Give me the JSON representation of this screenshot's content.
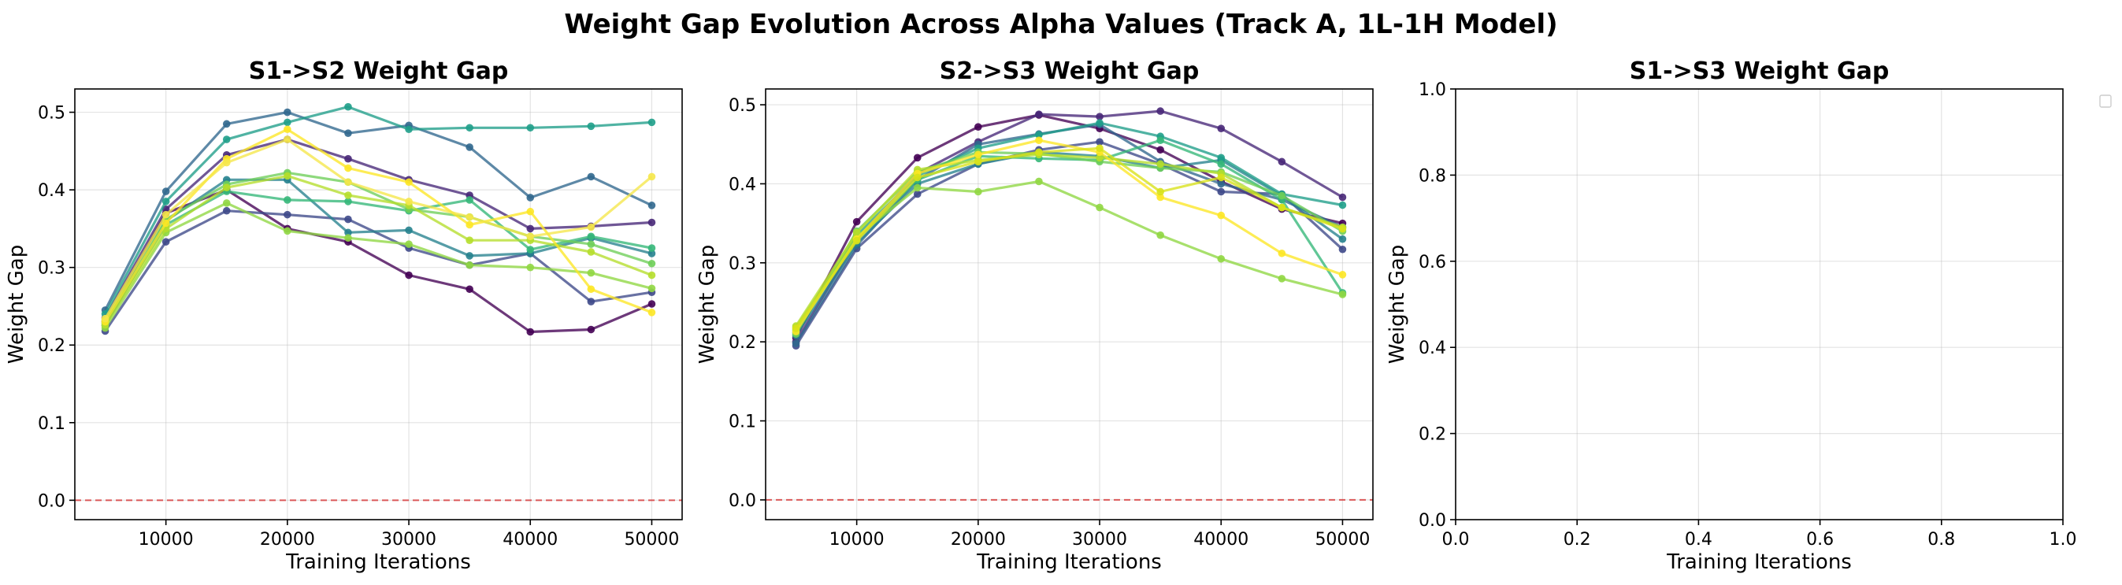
{
  "figure": {
    "title": "Weight Gap Evolution Across Alpha Values (Track A, 1L-1H Model)"
  },
  "chart_data": [
    {
      "type": "line",
      "title": "S1->S2 Weight Gap",
      "xlabel": "Training Iterations",
      "ylabel": "Weight Gap",
      "xlim": [
        2500,
        52500
      ],
      "ylim": [
        -0.025,
        0.53
      ],
      "xticks": [
        "10000",
        "20000",
        "30000",
        "40000",
        "50000"
      ],
      "yticks": [
        "0.0",
        "0.1",
        "0.2",
        "0.3",
        "0.4",
        "0.5"
      ],
      "grid": true,
      "reference_line": {
        "y": 0.0,
        "color": "#d62728",
        "style": "dashed"
      },
      "x": [
        5000,
        10000,
        15000,
        20000,
        25000,
        30000,
        35000,
        40000,
        45000,
        50000
      ],
      "series": [
        {
          "color": "#440154",
          "values": [
            0.23,
            0.37,
            0.4,
            0.35,
            0.333,
            0.29,
            0.272,
            0.217,
            0.22,
            0.253
          ]
        },
        {
          "color": "#482878",
          "values": [
            0.235,
            0.375,
            0.445,
            0.465,
            0.44,
            0.413,
            0.393,
            0.35,
            0.353,
            0.358
          ]
        },
        {
          "color": "#3e4989",
          "values": [
            0.218,
            0.333,
            0.373,
            0.368,
            0.362,
            0.325,
            0.303,
            0.318,
            0.256,
            0.268
          ]
        },
        {
          "color": "#31688e",
          "values": [
            0.245,
            0.398,
            0.485,
            0.5,
            0.473,
            0.483,
            0.455,
            0.39,
            0.417,
            0.38
          ]
        },
        {
          "color": "#26828e",
          "values": [
            0.225,
            0.36,
            0.413,
            0.413,
            0.345,
            0.348,
            0.315,
            0.318,
            0.338,
            0.318
          ]
        },
        {
          "color": "#1f9e89",
          "values": [
            0.24,
            0.385,
            0.465,
            0.487,
            0.507,
            0.478,
            0.48,
            0.48,
            0.482,
            0.487
          ]
        },
        {
          "color": "#35b779",
          "values": [
            0.228,
            0.355,
            0.398,
            0.387,
            0.385,
            0.373,
            0.387,
            0.323,
            0.34,
            0.325
          ]
        },
        {
          "color": "#6ece58",
          "values": [
            0.232,
            0.362,
            0.407,
            0.422,
            0.41,
            0.375,
            0.365,
            0.34,
            0.33,
            0.305
          ]
        },
        {
          "color": "#90d743",
          "values": [
            0.222,
            0.345,
            0.383,
            0.347,
            0.338,
            0.33,
            0.303,
            0.3,
            0.293,
            0.273
          ]
        },
        {
          "color": "#b5de2b",
          "values": [
            0.226,
            0.35,
            0.403,
            0.418,
            0.393,
            0.38,
            0.335,
            0.335,
            0.32,
            0.29
          ]
        },
        {
          "color": "#fde725",
          "values": [
            0.23,
            0.357,
            0.44,
            0.478,
            0.428,
            0.41,
            0.355,
            0.372,
            0.272,
            0.242
          ]
        },
        {
          "color": "#f5e74a",
          "values": [
            0.234,
            0.368,
            0.435,
            0.465,
            0.41,
            0.385,
            0.365,
            0.34,
            0.352,
            0.417
          ]
        }
      ]
    },
    {
      "type": "line",
      "title": "S2->S3 Weight Gap",
      "xlabel": "Training Iterations",
      "ylabel": "Weight Gap",
      "xlim": [
        2500,
        52500
      ],
      "ylim": [
        -0.025,
        0.52
      ],
      "xticks": [
        "10000",
        "20000",
        "30000",
        "40000",
        "50000"
      ],
      "yticks": [
        "0.0",
        "0.1",
        "0.2",
        "0.3",
        "0.4",
        "0.5"
      ],
      "grid": true,
      "reference_line": {
        "y": 0.0,
        "color": "#d62728",
        "style": "dashed"
      },
      "x": [
        5000,
        10000,
        15000,
        20000,
        25000,
        30000,
        35000,
        40000,
        45000,
        50000
      ],
      "series": [
        {
          "color": "#440154",
          "values": [
            0.205,
            0.352,
            0.433,
            0.472,
            0.487,
            0.47,
            0.443,
            0.403,
            0.368,
            0.35
          ]
        },
        {
          "color": "#482878",
          "values": [
            0.2,
            0.33,
            0.413,
            0.453,
            0.488,
            0.485,
            0.492,
            0.47,
            0.428,
            0.383
          ]
        },
        {
          "color": "#3e4989",
          "values": [
            0.195,
            0.318,
            0.387,
            0.425,
            0.443,
            0.453,
            0.425,
            0.39,
            0.387,
            0.317
          ]
        },
        {
          "color": "#31688e",
          "values": [
            0.198,
            0.322,
            0.405,
            0.45,
            0.463,
            0.475,
            0.428,
            0.4,
            0.38,
            0.345
          ]
        },
        {
          "color": "#26828e",
          "values": [
            0.208,
            0.325,
            0.4,
            0.425,
            0.44,
            0.435,
            0.42,
            0.43,
            0.385,
            0.33
          ]
        },
        {
          "color": "#1f9e89",
          "values": [
            0.212,
            0.335,
            0.41,
            0.445,
            0.462,
            0.477,
            0.46,
            0.433,
            0.387,
            0.373
          ]
        },
        {
          "color": "#35b779",
          "values": [
            0.215,
            0.33,
            0.405,
            0.435,
            0.432,
            0.43,
            0.455,
            0.425,
            0.38,
            0.262
          ]
        },
        {
          "color": "#6ece58",
          "values": [
            0.21,
            0.34,
            0.415,
            0.44,
            0.438,
            0.428,
            0.42,
            0.415,
            0.385,
            0.34
          ]
        },
        {
          "color": "#90d743",
          "values": [
            0.218,
            0.333,
            0.395,
            0.39,
            0.403,
            0.37,
            0.335,
            0.305,
            0.28,
            0.26
          ]
        },
        {
          "color": "#b5de2b",
          "values": [
            0.22,
            0.338,
            0.418,
            0.43,
            0.437,
            0.433,
            0.425,
            0.413,
            0.37,
            0.345
          ]
        },
        {
          "color": "#fde725",
          "values": [
            0.213,
            0.33,
            0.413,
            0.437,
            0.455,
            0.44,
            0.383,
            0.36,
            0.312,
            0.285
          ]
        },
        {
          "color": "#d8e219",
          "values": [
            0.217,
            0.328,
            0.408,
            0.428,
            0.44,
            0.445,
            0.39,
            0.408,
            0.37,
            0.343
          ]
        }
      ]
    },
    {
      "type": "line",
      "title": "S1->S3 Weight Gap",
      "xlabel": "Training Iterations",
      "ylabel": "Weight Gap",
      "xlim": [
        0.0,
        1.0
      ],
      "ylim": [
        0.0,
        1.0
      ],
      "xticks": [
        "0.0",
        "0.2",
        "0.4",
        "0.6",
        "0.8",
        "1.0"
      ],
      "yticks": [
        "0.0",
        "0.2",
        "0.4",
        "0.6",
        "0.8",
        "1.0"
      ],
      "grid": true,
      "legend": "upper-right-outside",
      "x": [],
      "series": []
    }
  ]
}
